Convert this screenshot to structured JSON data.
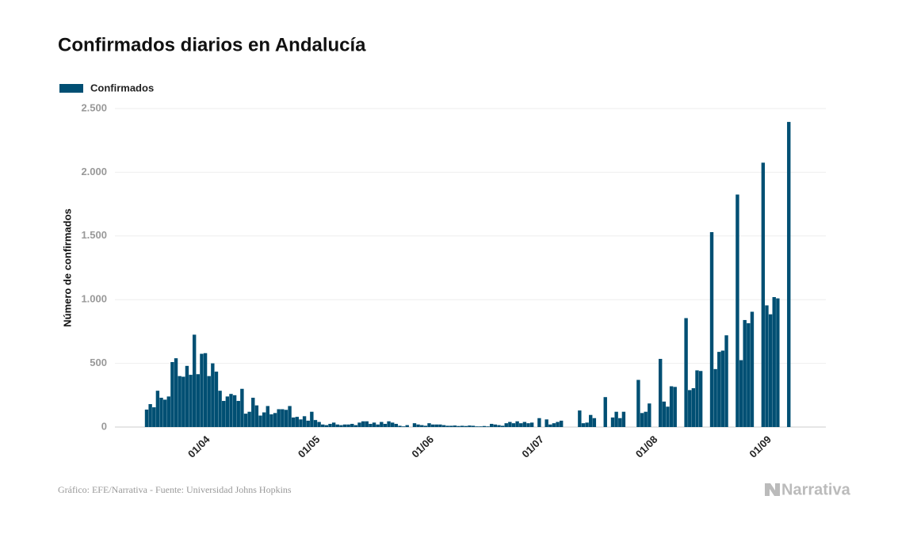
{
  "chart_data": {
    "type": "bar",
    "title": "Confirmados diarios en Andalucía",
    "y_label": "Número de confirmados",
    "source": "Gráfico: EFE/Narrativa - Fuente: Universidad Johns Hopkins",
    "brand": "Narrativa",
    "series": [
      {
        "name": "Confirmados",
        "color": "#004f73",
        "values": [
          137,
          180,
          155,
          285,
          230,
          215,
          240,
          510,
          540,
          400,
          395,
          480,
          410,
          725,
          415,
          575,
          580,
          400,
          500,
          435,
          285,
          205,
          240,
          260,
          250,
          205,
          300,
          105,
          120,
          230,
          170,
          90,
          115,
          165,
          100,
          110,
          140,
          140,
          135,
          165,
          75,
          80,
          60,
          85,
          50,
          120,
          55,
          40,
          20,
          15,
          25,
          35,
          20,
          15,
          20,
          20,
          25,
          15,
          35,
          45,
          45,
          25,
          35,
          20,
          40,
          25,
          45,
          35,
          25,
          10,
          5,
          15,
          0,
          30,
          20,
          15,
          10,
          30,
          20,
          20,
          20,
          15,
          10,
          10,
          12,
          8,
          10,
          8,
          12,
          10,
          5,
          5,
          8,
          5,
          25,
          20,
          15,
          10,
          30,
          40,
          30,
          45,
          30,
          40,
          30,
          35,
          0,
          70,
          0,
          60,
          20,
          30,
          40,
          50,
          0,
          0,
          0,
          0,
          130,
          30,
          35,
          95,
          70,
          0,
          0,
          235,
          0,
          75,
          120,
          70,
          120,
          0,
          0,
          0,
          370,
          110,
          120,
          185,
          0,
          0,
          535,
          200,
          160,
          320,
          315,
          0,
          0,
          855,
          290,
          305,
          445,
          440,
          0,
          0,
          1530,
          455,
          590,
          600,
          720,
          0,
          0,
          1825,
          525,
          840,
          815,
          905,
          0,
          0,
          2075,
          955,
          885,
          1020,
          1010,
          0,
          0,
          2395
        ]
      }
    ],
    "categories": [
      null,
      null,
      null,
      null,
      null,
      null,
      null,
      null,
      null,
      null,
      null,
      null,
      null,
      null,
      null,
      null,
      "01/04",
      null,
      null,
      null,
      null,
      null,
      null,
      null,
      null,
      null,
      null,
      null,
      null,
      null,
      null,
      null,
      null,
      null,
      null,
      null,
      null,
      null,
      null,
      null,
      null,
      null,
      null,
      null,
      null,
      null,
      "01/05",
      null,
      null,
      null,
      null,
      null,
      null,
      null,
      null,
      null,
      null,
      null,
      null,
      null,
      null,
      null,
      null,
      null,
      null,
      null,
      null,
      null,
      null,
      null,
      null,
      null,
      null,
      null,
      null,
      null,
      null,
      "01/06",
      null,
      null,
      null,
      null,
      null,
      null,
      null,
      null,
      null,
      null,
      null,
      null,
      null,
      null,
      null,
      null,
      null,
      null,
      null,
      null,
      null,
      null,
      null,
      null,
      null,
      null,
      null,
      null,
      null,
      "01/07",
      null,
      null,
      null,
      null,
      null,
      null,
      null,
      null,
      null,
      null,
      null,
      null,
      null,
      null,
      null,
      null,
      null,
      null,
      null,
      null,
      null,
      null,
      null,
      null,
      null,
      null,
      null,
      null,
      null,
      null,
      "01/08",
      null,
      null,
      null,
      null,
      null,
      null,
      null,
      null,
      null,
      null,
      null,
      null,
      null,
      null,
      null,
      null,
      null,
      null,
      null,
      null,
      null,
      null,
      null,
      null,
      null,
      null,
      null,
      null,
      null,
      null,
      "01/09",
      null,
      null,
      null,
      null,
      null,
      null
    ],
    "ylim": [
      0,
      2500
    ],
    "yticks": [
      0,
      500,
      {
        "value": 1000,
        "label": "1.000"
      },
      {
        "value": 1500,
        "label": "1.500"
      },
      {
        "value": 2000,
        "label": "2.000"
      },
      {
        "value": 2500,
        "label": "2.500"
      }
    ],
    "grid": true,
    "legend": "top-left"
  }
}
